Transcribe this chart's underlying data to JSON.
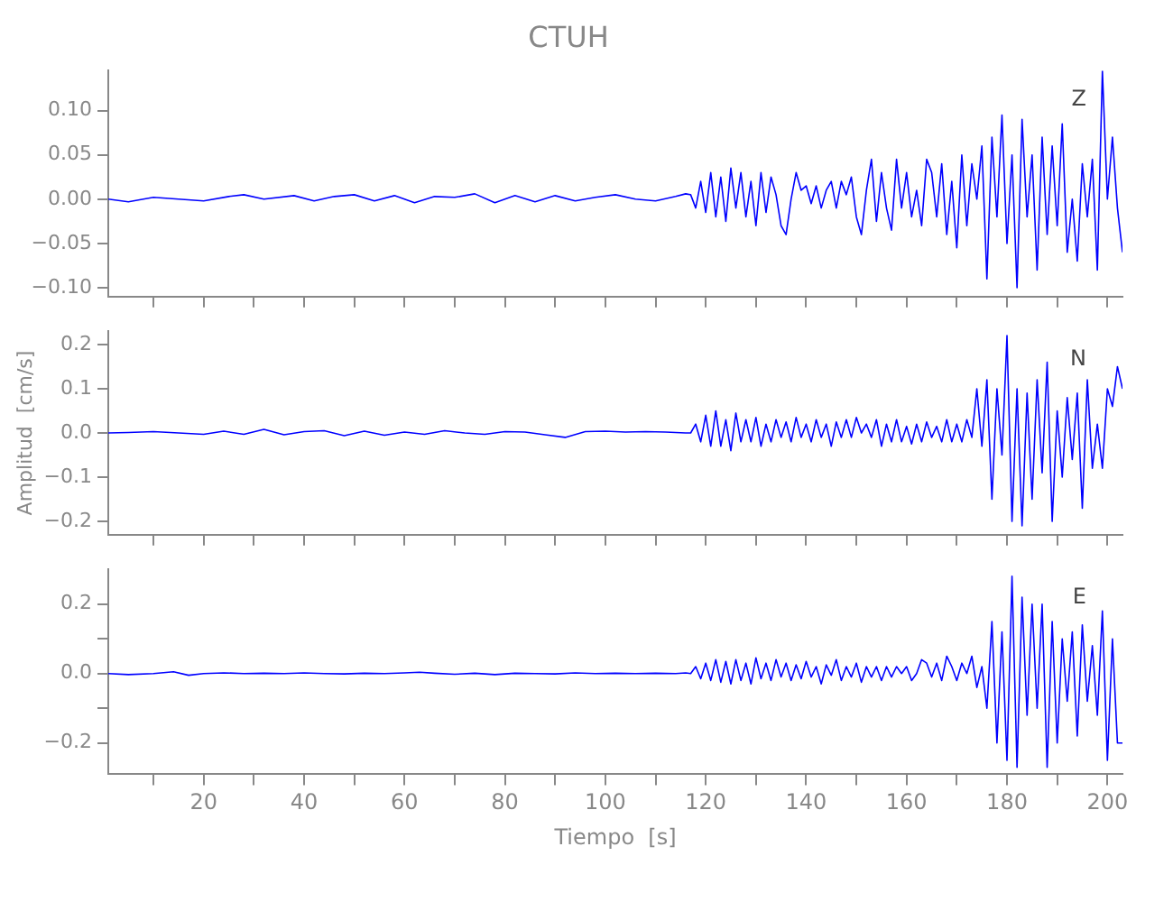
{
  "chart_data": [
    {
      "type": "line",
      "title": "CTUH",
      "annotations": [
        "Z"
      ],
      "tick_labels": "y",
      "xlim": [
        1,
        203
      ],
      "xticks": [
        {
          "value": 10,
          "label": null
        },
        {
          "value": 20,
          "label": null
        },
        {
          "value": 30,
          "label": null
        },
        {
          "value": 40,
          "label": null
        },
        {
          "value": 50,
          "label": null
        },
        {
          "value": 60,
          "label": null
        },
        {
          "value": 70,
          "label": null
        },
        {
          "value": 80,
          "label": null
        },
        {
          "value": 90,
          "label": null
        },
        {
          "value": 100,
          "label": null
        },
        {
          "value": 110,
          "label": null
        },
        {
          "value": 120,
          "label": null
        },
        {
          "value": 130,
          "label": null
        },
        {
          "value": 140,
          "label": null
        },
        {
          "value": 150,
          "label": null
        },
        {
          "value": 160,
          "label": null
        },
        {
          "value": 170,
          "label": null
        },
        {
          "value": 180,
          "label": null
        },
        {
          "value": 190,
          "label": null
        },
        {
          "value": 200,
          "label": null
        }
      ],
      "ylim": [
        -0.11,
        0.145
      ],
      "yticks": [
        {
          "value": -0.1,
          "label": "−0.10"
        },
        {
          "value": -0.05,
          "label": "−0.05"
        },
        {
          "value": 0,
          "label": "0.00"
        },
        {
          "value": 0.05,
          "label": "0.05"
        },
        {
          "value": 0.1,
          "label": "0.10"
        }
      ],
      "series": [
        {
          "color": "#0000ff",
          "x": [
            1,
            5,
            10,
            15,
            20,
            25,
            28,
            32,
            38,
            42,
            46,
            50,
            54,
            58,
            62,
            66,
            70,
            74,
            78,
            82,
            86,
            90,
            94,
            98,
            102,
            106,
            110,
            114,
            116,
            117,
            118,
            119,
            120,
            121,
            122,
            123,
            124,
            125,
            126,
            127,
            128,
            129,
            130,
            131,
            132,
            133,
            134,
            135,
            136,
            137,
            138,
            139,
            140,
            141,
            142,
            143,
            144,
            145,
            146,
            147,
            148,
            149,
            150,
            151,
            152,
            153,
            154,
            155,
            156,
            157,
            158,
            159,
            160,
            161,
            162,
            163,
            164,
            165,
            166,
            167,
            168,
            169,
            170,
            171,
            172,
            173,
            174,
            175,
            176,
            177,
            178,
            179,
            180,
            181,
            182,
            183,
            184,
            185,
            186,
            187,
            188,
            189,
            190,
            191,
            192,
            193,
            194,
            195,
            196,
            197,
            198,
            199,
            200,
            201,
            202,
            203
          ],
          "values": [
            0,
            -0.003,
            0.002,
            0,
            -0.002,
            0.003,
            0.005,
            0,
            0.004,
            -0.002,
            0.003,
            0.005,
            -0.002,
            0.004,
            -0.004,
            0.003,
            0.002,
            0.006,
            -0.004,
            0.004,
            -0.003,
            0.004,
            -0.002,
            0.002,
            0.005,
            0,
            -0.002,
            0.003,
            0.006,
            0.005,
            -0.01,
            0.02,
            -0.015,
            0.03,
            -0.02,
            0.025,
            -0.025,
            0.035,
            -0.01,
            0.03,
            -0.02,
            0.02,
            -0.03,
            0.03,
            -0.015,
            0.025,
            0.005,
            -0.03,
            -0.04,
            0,
            0.03,
            0.01,
            0.015,
            -0.005,
            0.015,
            -0.01,
            0.01,
            0.02,
            -0.01,
            0.02,
            0.005,
            0.025,
            -0.02,
            -0.04,
            0.01,
            0.045,
            -0.025,
            0.03,
            -0.01,
            -0.035,
            0.045,
            -0.01,
            0.03,
            -0.02,
            0.01,
            -0.03,
            0.045,
            0.03,
            -0.02,
            0.04,
            -0.04,
            0.02,
            -0.055,
            0.05,
            -0.03,
            0.04,
            0,
            0.06,
            -0.09,
            0.07,
            -0.02,
            0.095,
            -0.05,
            0.05,
            -0.1,
            0.09,
            -0.02,
            0.05,
            -0.08,
            0.07,
            -0.04,
            0.06,
            -0.03,
            0.085,
            -0.06,
            0,
            -0.07,
            0.04,
            -0.02,
            0.045,
            -0.08,
            0.145,
            0,
            0.07,
            -0.01,
            -0.06
          ]
        }
      ]
    },
    {
      "type": "line",
      "ylabel": "Amplitud  [cm/s]",
      "annotations": [
        "N"
      ],
      "tick_labels": "y",
      "xlim": [
        1,
        203
      ],
      "xticks": [
        {
          "value": 10,
          "label": null
        },
        {
          "value": 20,
          "label": null
        },
        {
          "value": 30,
          "label": null
        },
        {
          "value": 40,
          "label": null
        },
        {
          "value": 50,
          "label": null
        },
        {
          "value": 60,
          "label": null
        },
        {
          "value": 70,
          "label": null
        },
        {
          "value": 80,
          "label": null
        },
        {
          "value": 90,
          "label": null
        },
        {
          "value": 100,
          "label": null
        },
        {
          "value": 110,
          "label": null
        },
        {
          "value": 120,
          "label": null
        },
        {
          "value": 130,
          "label": null
        },
        {
          "value": 140,
          "label": null
        },
        {
          "value": 150,
          "label": null
        },
        {
          "value": 160,
          "label": null
        },
        {
          "value": 170,
          "label": null
        },
        {
          "value": 180,
          "label": null
        },
        {
          "value": 190,
          "label": null
        },
        {
          "value": 200,
          "label": null
        }
      ],
      "ylim": [
        -0.23,
        0.23
      ],
      "yticks": [
        {
          "value": -0.2,
          "label": "−0.2"
        },
        {
          "value": -0.1,
          "label": "−0.1"
        },
        {
          "value": 0,
          "label": "0.0"
        },
        {
          "value": 0.1,
          "label": "0.1"
        },
        {
          "value": 0.2,
          "label": "0.2"
        }
      ],
      "series": [
        {
          "color": "#0000ff",
          "x": [
            1,
            5,
            10,
            15,
            20,
            24,
            28,
            32,
            36,
            40,
            44,
            48,
            52,
            56,
            60,
            64,
            68,
            72,
            76,
            80,
            84,
            88,
            92,
            96,
            100,
            104,
            108,
            112,
            116,
            117,
            118,
            119,
            120,
            121,
            122,
            123,
            124,
            125,
            126,
            127,
            128,
            129,
            130,
            131,
            132,
            133,
            134,
            135,
            136,
            137,
            138,
            139,
            140,
            141,
            142,
            143,
            144,
            145,
            146,
            147,
            148,
            149,
            150,
            151,
            152,
            153,
            154,
            155,
            156,
            157,
            158,
            159,
            160,
            161,
            162,
            163,
            164,
            165,
            166,
            167,
            168,
            169,
            170,
            171,
            172,
            173,
            174,
            175,
            176,
            177,
            178,
            179,
            180,
            181,
            182,
            183,
            184,
            185,
            186,
            187,
            188,
            189,
            190,
            191,
            192,
            193,
            194,
            195,
            196,
            197,
            198,
            199,
            200,
            201,
            202,
            203
          ],
          "values": [
            0,
            0.001,
            0.003,
            0,
            -0.003,
            0.004,
            -0.003,
            0.008,
            -0.004,
            0.003,
            0.005,
            -0.006,
            0.004,
            -0.005,
            0.002,
            -0.003,
            0.005,
            0,
            -0.003,
            0.003,
            0.002,
            -0.004,
            -0.01,
            0.003,
            0.004,
            0.002,
            0.003,
            0.002,
            0,
            0,
            0.02,
            -0.02,
            0.04,
            -0.03,
            0.05,
            -0.03,
            0.03,
            -0.04,
            0.045,
            -0.02,
            0.03,
            -0.02,
            0.035,
            -0.03,
            0.02,
            -0.02,
            0.03,
            -0.01,
            0.025,
            -0.02,
            0.035,
            -0.01,
            0.02,
            -0.02,
            0.03,
            -0.01,
            0.02,
            -0.03,
            0.025,
            -0.01,
            0.03,
            -0.01,
            0.035,
            0,
            0.02,
            -0.01,
            0.03,
            -0.03,
            0.02,
            -0.02,
            0.03,
            -0.02,
            0.015,
            -0.025,
            0.02,
            -0.02,
            0.025,
            -0.01,
            0.015,
            -0.02,
            0.03,
            -0.02,
            0.02,
            -0.02,
            0.03,
            -0.01,
            0.1,
            -0.03,
            0.12,
            -0.15,
            0.1,
            -0.05,
            0.22,
            -0.2,
            0.1,
            -0.21,
            0.09,
            -0.15,
            0.12,
            -0.09,
            0.16,
            -0.2,
            0.05,
            -0.1,
            0.08,
            -0.06,
            0.09,
            -0.17,
            0.12,
            -0.08,
            0.02,
            -0.08,
            0.1,
            0.06,
            0.15,
            0.1
          ]
        }
      ]
    },
    {
      "type": "line",
      "xlabel": "Tiempo  [s]",
      "annotations": [
        "E"
      ],
      "xlim": [
        1,
        203
      ],
      "xticks": [
        {
          "value": 10,
          "label": null
        },
        {
          "value": 20,
          "label": "20"
        },
        {
          "value": 30,
          "label": null
        },
        {
          "value": 40,
          "label": "40"
        },
        {
          "value": 50,
          "label": null
        },
        {
          "value": 60,
          "label": "60"
        },
        {
          "value": 70,
          "label": null
        },
        {
          "value": 80,
          "label": "80"
        },
        {
          "value": 90,
          "label": null
        },
        {
          "value": 100,
          "label": "100"
        },
        {
          "value": 110,
          "label": null
        },
        {
          "value": 120,
          "label": "120"
        },
        {
          "value": 130,
          "label": null
        },
        {
          "value": 140,
          "label": "140"
        },
        {
          "value": 150,
          "label": null
        },
        {
          "value": 160,
          "label": "160"
        },
        {
          "value": 170,
          "label": null
        },
        {
          "value": 180,
          "label": "180"
        },
        {
          "value": 190,
          "label": null
        },
        {
          "value": 200,
          "label": "200"
        }
      ],
      "ylim": [
        -0.29,
        0.3
      ],
      "yticks": [
        {
          "value": -0.2,
          "label": "−0.2"
        },
        {
          "value": -0.1,
          "label": null
        },
        {
          "value": 0,
          "label": "0.0"
        },
        {
          "value": 0.1,
          "label": null
        },
        {
          "value": 0.2,
          "label": "0.2"
        }
      ],
      "series": [
        {
          "color": "#0000ff",
          "x": [
            1,
            5,
            10,
            14,
            17,
            20,
            24,
            28,
            32,
            36,
            40,
            44,
            48,
            52,
            56,
            60,
            63,
            66,
            70,
            74,
            78,
            82,
            86,
            90,
            94,
            98,
            102,
            106,
            110,
            114,
            116,
            117,
            118,
            119,
            120,
            121,
            122,
            123,
            124,
            125,
            126,
            127,
            128,
            129,
            130,
            131,
            132,
            133,
            134,
            135,
            136,
            137,
            138,
            139,
            140,
            141,
            142,
            143,
            144,
            145,
            146,
            147,
            148,
            149,
            150,
            151,
            152,
            153,
            154,
            155,
            156,
            157,
            158,
            159,
            160,
            161,
            162,
            163,
            164,
            165,
            166,
            167,
            168,
            169,
            170,
            171,
            172,
            173,
            174,
            175,
            176,
            177,
            178,
            179,
            180,
            181,
            182,
            183,
            184,
            185,
            186,
            187,
            188,
            189,
            190,
            191,
            192,
            193,
            194,
            195,
            196,
            197,
            198,
            199,
            200,
            201,
            202,
            203
          ],
          "values": [
            0,
            -0.003,
            0,
            0.005,
            -0.005,
            0,
            0.002,
            0,
            0.001,
            0,
            0.002,
            0,
            -0.001,
            0.001,
            0,
            0.002,
            0.004,
            0.001,
            -0.002,
            0.001,
            -0.003,
            0.001,
            0,
            -0.001,
            0.002,
            0,
            0.001,
            0,
            0.001,
            0,
            0.002,
            0,
            0.02,
            -0.015,
            0.03,
            -0.02,
            0.04,
            -0.025,
            0.035,
            -0.03,
            0.04,
            -0.02,
            0.03,
            -0.03,
            0.045,
            -0.015,
            0.03,
            -0.02,
            0.04,
            -0.01,
            0.03,
            -0.02,
            0.025,
            -0.015,
            0.035,
            -0.01,
            0.02,
            -0.03,
            0.025,
            -0.005,
            0.04,
            -0.02,
            0.02,
            -0.01,
            0.03,
            -0.025,
            0.02,
            -0.01,
            0.02,
            -0.02,
            0.02,
            -0.01,
            0.02,
            0,
            0.02,
            -0.02,
            0,
            0.04,
            0.03,
            -0.01,
            0.03,
            -0.02,
            0.05,
            0.02,
            -0.02,
            0.03,
            0,
            0.05,
            -0.04,
            0.02,
            -0.1,
            0.15,
            -0.2,
            0.12,
            -0.25,
            0.28,
            -0.27,
            0.22,
            -0.12,
            0.2,
            -0.1,
            0.2,
            -0.27,
            0.15,
            -0.2,
            0.1,
            -0.08,
            0.12,
            -0.18,
            0.14,
            -0.08,
            0.08,
            -0.12,
            0.18,
            -0.25,
            0.1,
            -0.2,
            -0.2
          ]
        }
      ]
    }
  ]
}
